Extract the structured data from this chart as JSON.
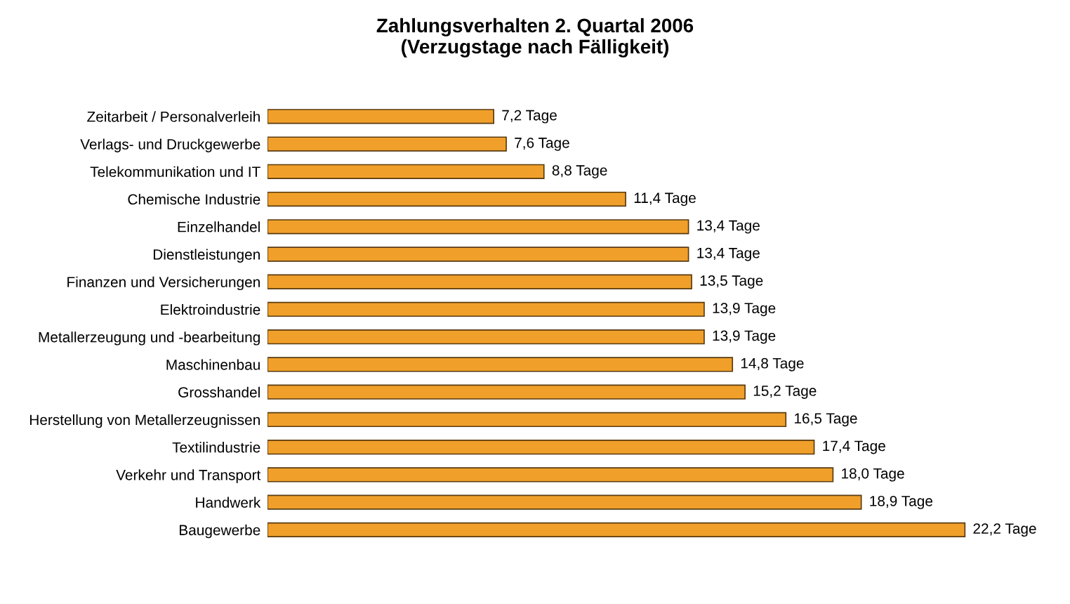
{
  "chart_data": {
    "type": "bar",
    "orientation": "horizontal",
    "title": "Zahlungsverhalten 2. Quartal 2006\n(Verzugstage nach Fälligkeit)",
    "categories": [
      "Zeitarbeit / Personalverleih",
      "Verlags- und Druckgewerbe",
      "Telekommunikation und IT",
      "Chemische Industrie",
      "Einzelhandel",
      "Dienstleistungen",
      "Finanzen und Versicherungen",
      "Elektroindustrie",
      "Metallerzeugung und -bearbeitung",
      "Maschinenbau",
      "Grosshandel",
      "Herstellung von Metallerzeugnissen",
      "Textilindustrie",
      "Verkehr und Transport",
      "Handwerk",
      "Baugewerbe"
    ],
    "values": [
      7.2,
      7.6,
      8.8,
      11.4,
      13.4,
      13.4,
      13.5,
      13.9,
      13.9,
      14.8,
      15.2,
      16.5,
      17.4,
      18.0,
      18.9,
      22.2
    ],
    "value_labels": [
      "7,2 Tage",
      "7,6 Tage",
      "8,8 Tage",
      "11,4 Tage",
      "13,4 Tage",
      "13,4 Tage",
      "13,5 Tage",
      "13,9 Tage",
      "13,9 Tage",
      "14,8 Tage",
      "15,2 Tage",
      "16,5 Tage",
      "17,4 Tage",
      "18,0 Tage",
      "18,9 Tage",
      "22,2 Tage"
    ],
    "color": "#f0a02a",
    "tick_labels": "y",
    "grid": false,
    "legend": false
  }
}
